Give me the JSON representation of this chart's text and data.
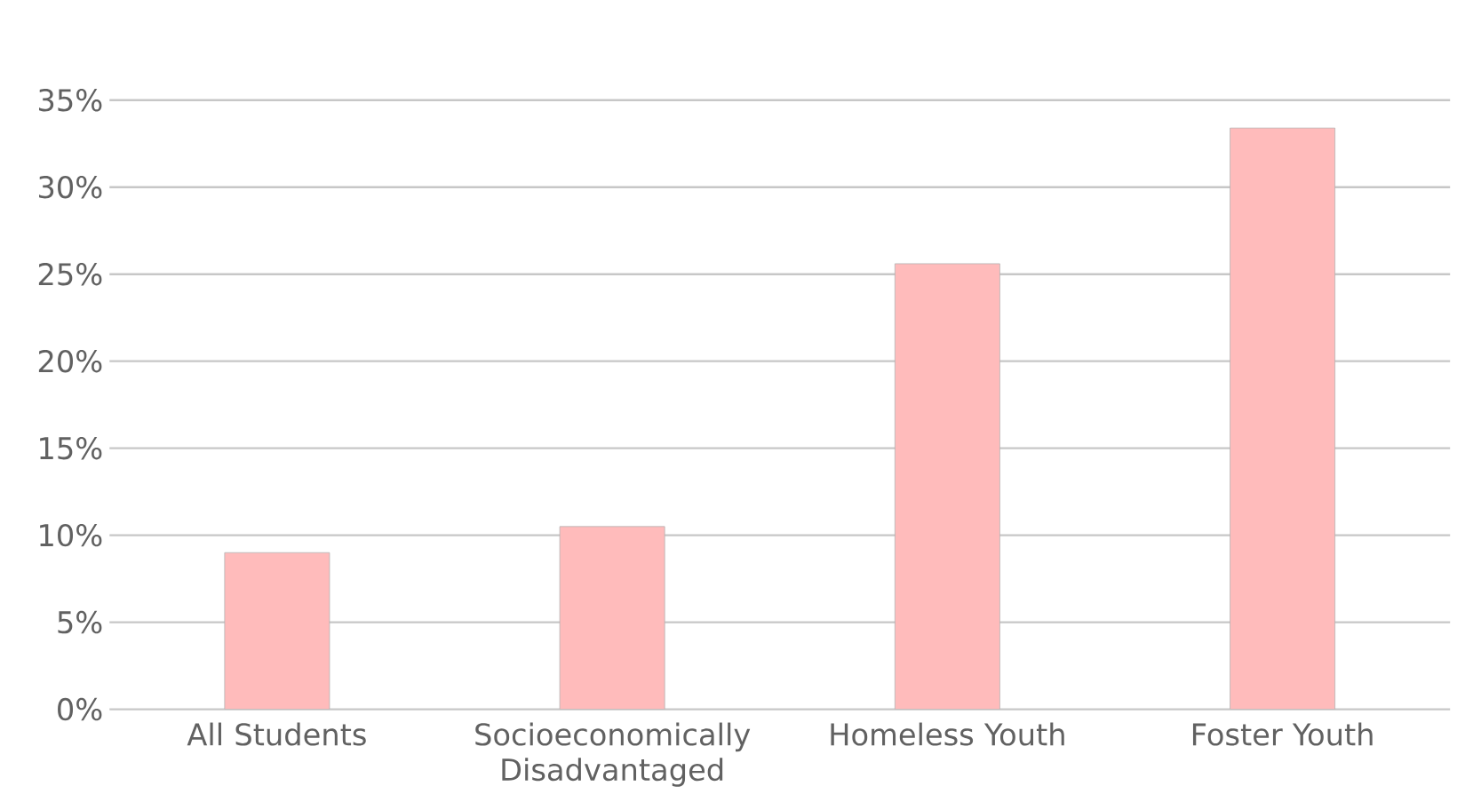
{
  "chart_data": {
    "type": "bar",
    "categories": [
      "All Students",
      "Socioeconomically Disadvantaged",
      "Homeless Youth",
      "Foster Youth"
    ],
    "values": [
      9.0,
      10.5,
      25.6,
      33.4
    ],
    "color": "#ffbbbb",
    "ylim": [
      0,
      35
    ],
    "yticks": [
      {
        "value": 0,
        "label": "0%"
      },
      {
        "value": 5,
        "label": "5%"
      },
      {
        "value": 10,
        "label": "10%"
      },
      {
        "value": 15,
        "label": "15%"
      },
      {
        "value": 20,
        "label": "20%"
      },
      {
        "value": 25,
        "label": "25%"
      },
      {
        "value": 30,
        "label": "30%"
      },
      {
        "value": 35,
        "label": "35%"
      }
    ],
    "grid": "y"
  }
}
